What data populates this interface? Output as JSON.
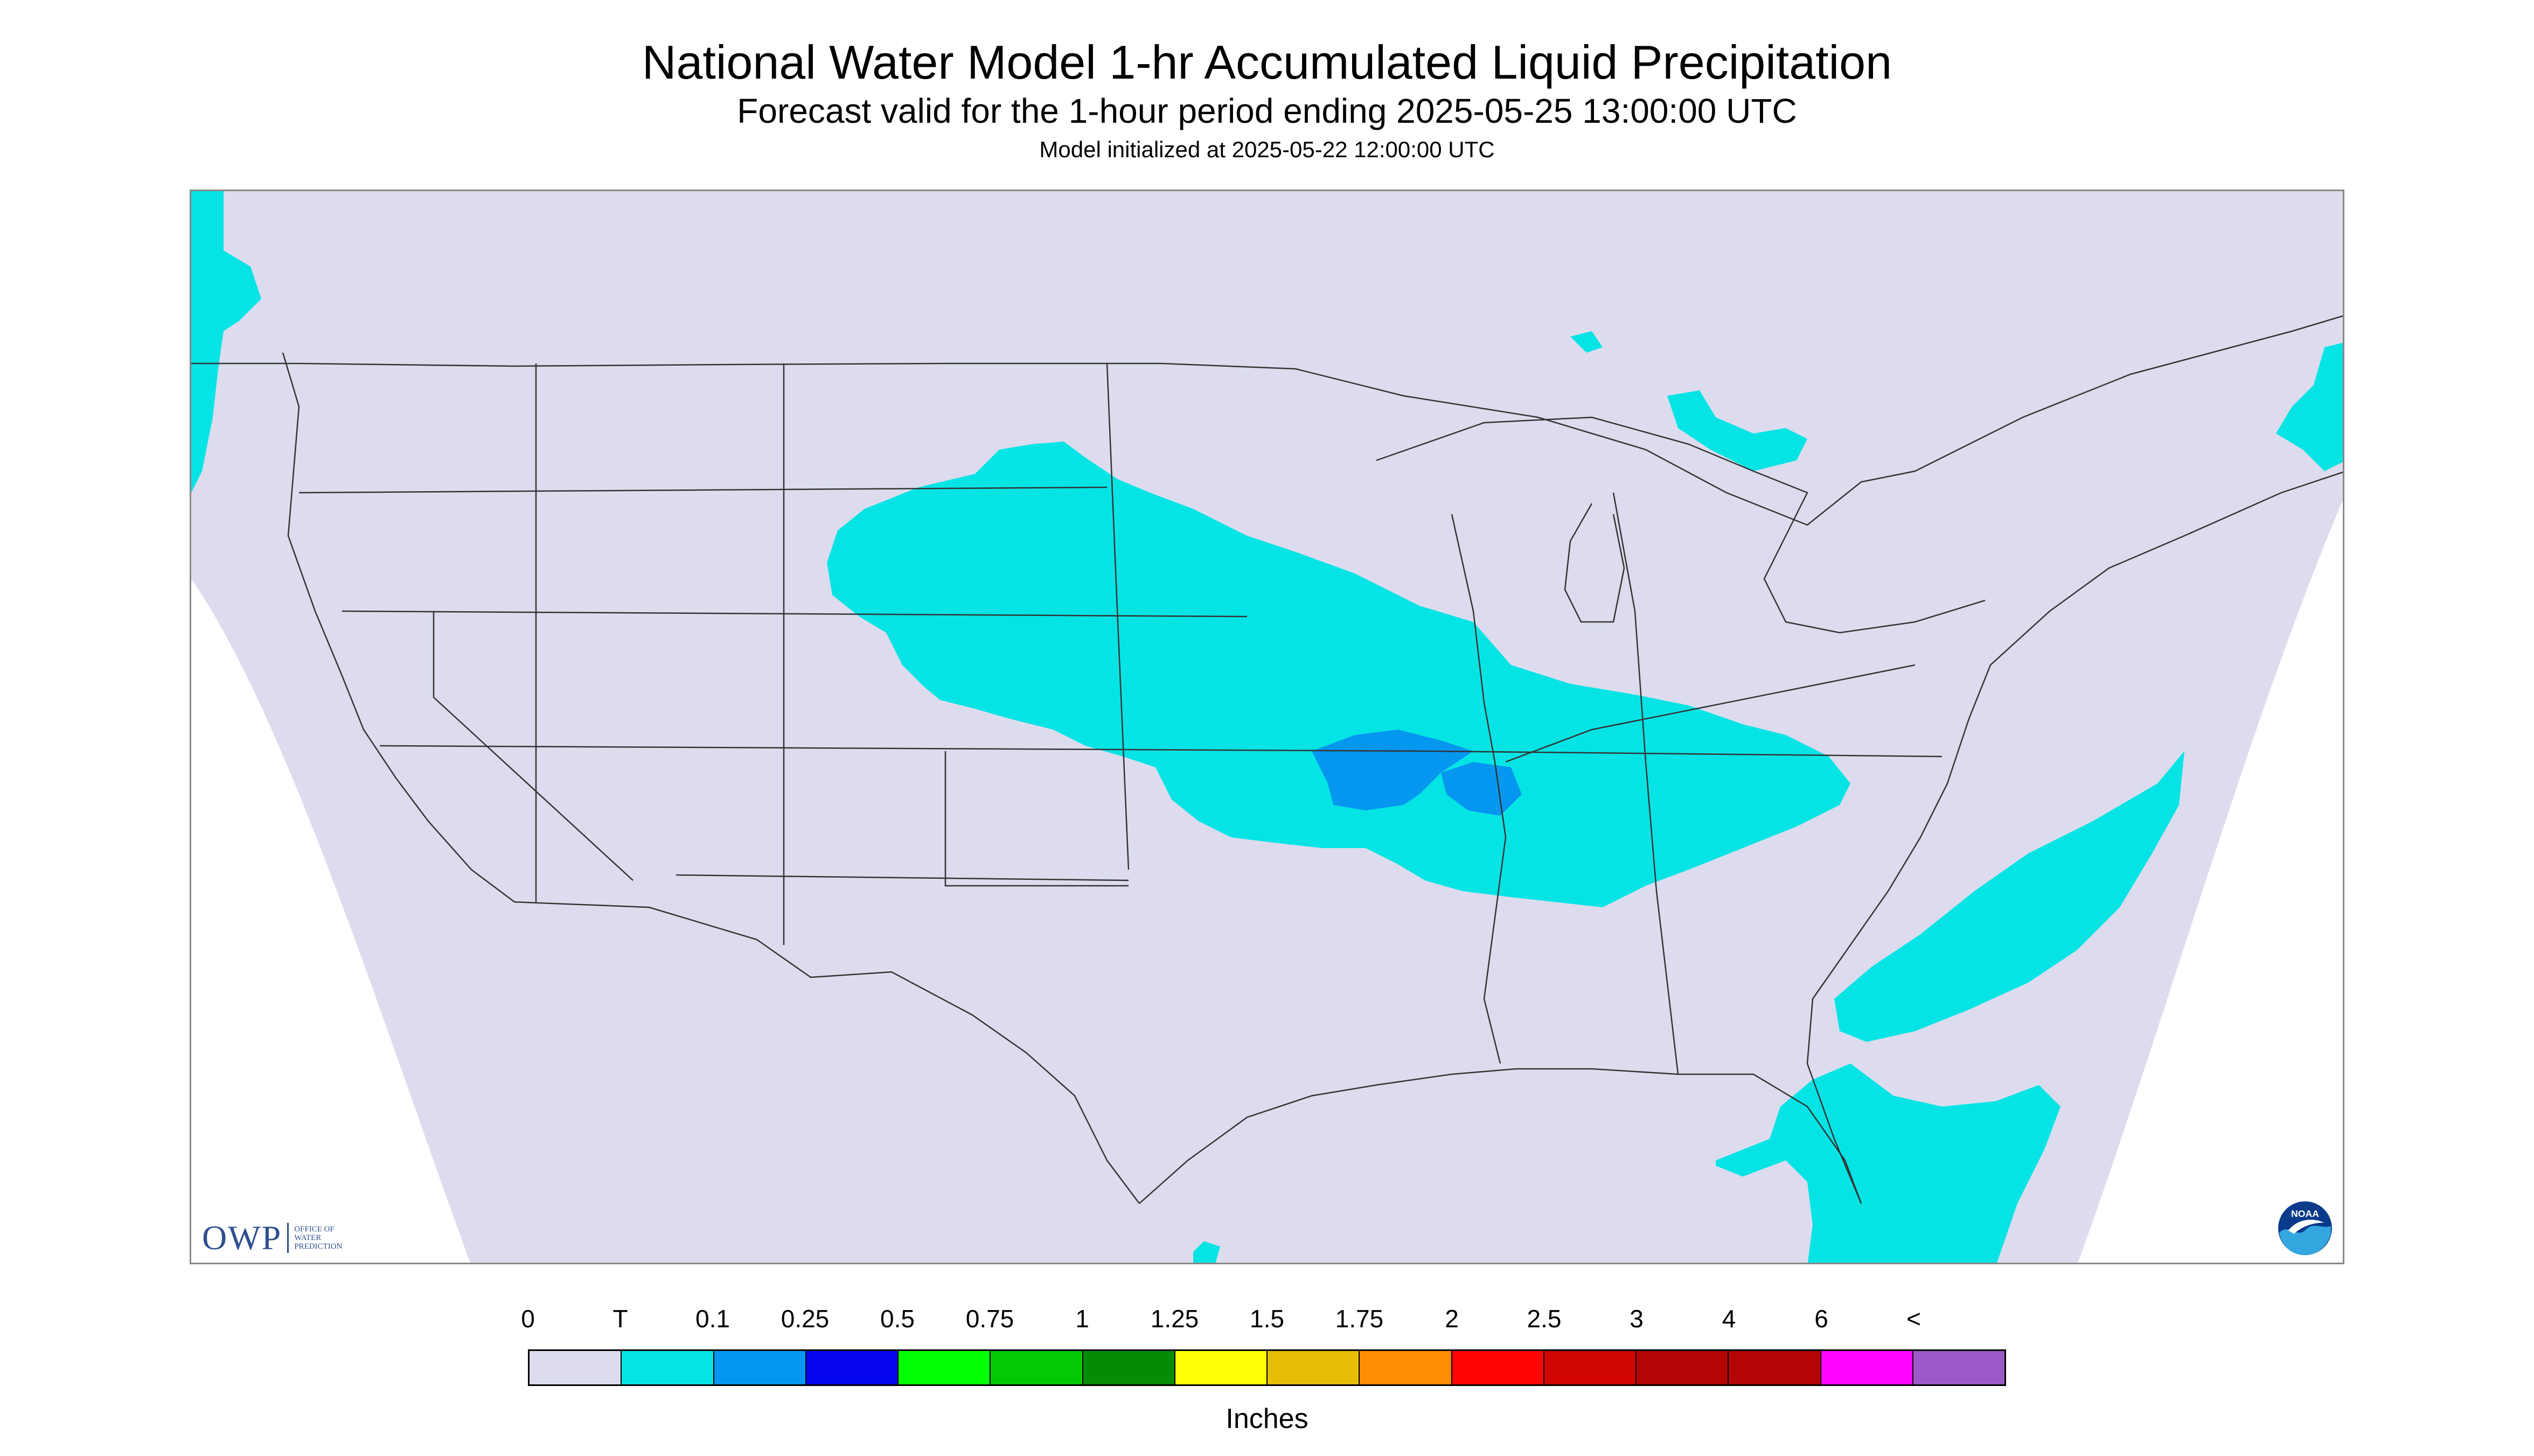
{
  "header": {
    "title": "National Water Model 1-hr Accumulated Liquid Precipitation",
    "subtitle": "Forecast valid for the 1-hour period ending 2025-05-25 13:00:00 UTC",
    "init": "Model initialized at 2025-05-22 12:00:00 UTC"
  },
  "map": {
    "background_color": "#dcdcee",
    "outside_color": "#ffffff",
    "border_color": "#333333",
    "precip_light_color": "#05e4e4",
    "precip_medium_color": "#0597f0"
  },
  "logos": {
    "owp_word": "OWP",
    "owp_lines": [
      "Office of",
      "Water",
      "Prediction"
    ],
    "noaa_text": "NOAA"
  },
  "legend": {
    "tick_labels": [
      "0",
      "T",
      "0.1",
      "0.25",
      "0.5",
      "0.75",
      "1",
      "1.25",
      "1.5",
      "1.75",
      "2",
      "2.5",
      "3",
      "4",
      "6",
      "<"
    ],
    "colors": [
      "#dcdcee",
      "#05e4e4",
      "#0597f0",
      "#0505ee",
      "#05ff05",
      "#05c805",
      "#058c05",
      "#ffff05",
      "#e6be05",
      "#ff8c05",
      "#ff0505",
      "#d20505",
      "#b40505",
      "#b40505",
      "#ff05ff",
      "#9b59c8"
    ],
    "units": "Inches"
  }
}
